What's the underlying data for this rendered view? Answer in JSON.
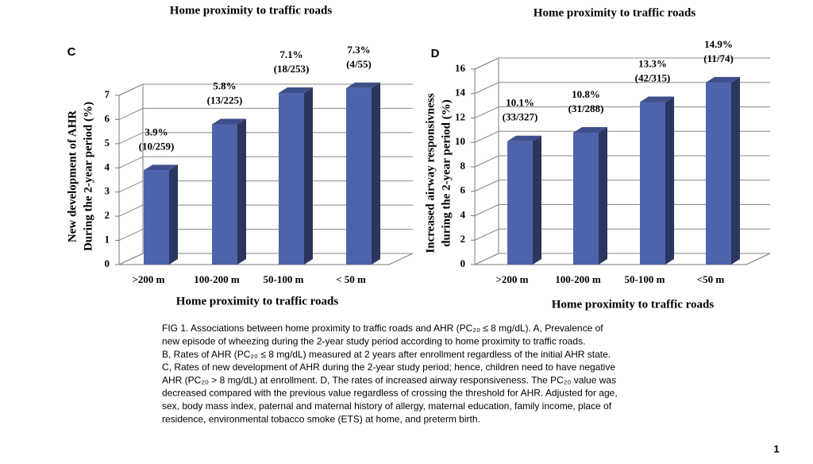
{
  "chart_data": [
    {
      "type": "bar",
      "panel": "C",
      "title": "Home proximity to traffic roads",
      "x_label": "Home proximity to traffic roads",
      "y_label": [
        "New development of AHR",
        "During the 2-year period (%)"
      ],
      "categories": [
        ">200 m",
        "100-200 m",
        "50-100 m",
        "< 50 m"
      ],
      "values": [
        3.9,
        5.8,
        7.1,
        7.3
      ],
      "value_labels": [
        "3.9%",
        "5.8%",
        "7.1%",
        "7.3%"
      ],
      "count_labels": [
        "(10/259)",
        "(13/225)",
        "(18/253)",
        "(4/55)"
      ],
      "color": "#4f63ac",
      "ylim": [
        0,
        7
      ],
      "yticks": [
        0,
        1,
        2,
        3,
        4,
        5,
        6,
        7
      ],
      "grid": true
    },
    {
      "type": "bar",
      "panel": "D",
      "title": "Home proximity to traffic roads",
      "x_label": "Home proximity to traffic roads",
      "y_label": [
        "Increased airway responsivness",
        "during the 2-year period (%)"
      ],
      "categories": [
        ">200 m",
        "100-200 m",
        "50-100 m",
        "<50 m"
      ],
      "values": [
        10.1,
        10.8,
        13.3,
        14.9
      ],
      "value_labels": [
        "10.1%",
        "10.8%",
        "13.3%",
        "14.9%"
      ],
      "count_labels": [
        "(33/327)",
        "(31/288)",
        "(42/315)",
        "(11/74)"
      ],
      "color": "#4f63ac",
      "ylim": [
        0,
        16
      ],
      "yticks": [
        0,
        2,
        4,
        6,
        8,
        10,
        12,
        14,
        16
      ],
      "grid": true
    }
  ],
  "caption": [
    "FIG 1. Associations between home proximity to traffic roads and AHR (PC₂₀ ≤ 8 mg/dL). A, Prevalence of",
    "new episode of wheezing during the 2-year study period according to home proximity to traffic roads.",
    "B, Rates of AHR (PC₂₀ ≤ 8 mg/dL) measured at 2 years after enrollment regardless of the initial AHR state.",
    "C, Rates of new development of AHR during the 2-year study period; hence, children need to have negative",
    "AHR (PC₂₀ > 8 mg/dL) at enrollment. D, The rates of increased airway responsiveness. The PC₂₀ value was",
    "decreased compared with the previous value regardless of crossing the threshold for AHR. Adjusted for age,",
    "sex, body mass index, paternal and maternal history of allergy, maternal education, family income, place of",
    "residence, environmental tobacco smoke (ETS) at home, and preterm birth."
  ],
  "page_number": "1"
}
